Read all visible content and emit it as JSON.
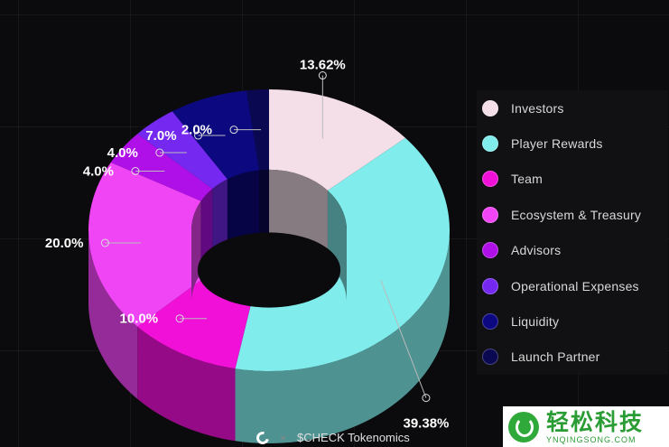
{
  "chart_data": {
    "type": "pie",
    "donut": true,
    "title": "$CHECK Tokenomics",
    "legend_position": "right",
    "slices": [
      {
        "name": "Investors",
        "value": 13.62,
        "label": "13.62%",
        "color": "#f4dfe8"
      },
      {
        "name": "Player Rewards",
        "value": 39.38,
        "label": "39.38%",
        "color": "#80ecec"
      },
      {
        "name": "Team",
        "value": 10.0,
        "label": "10.0%",
        "color": "#f010d8"
      },
      {
        "name": "Ecosystem & Treasury",
        "value": 20.0,
        "label": "20.0%",
        "color": "#f045f5"
      },
      {
        "name": "Advisors",
        "value": 4.0,
        "label": "4.0%",
        "color": "#b010e8"
      },
      {
        "name": "Operational Expenses",
        "value": 4.0,
        "label": "4.0%",
        "color": "#7428f0"
      },
      {
        "name": "Liquidity",
        "value": 7.0,
        "label": "7.0%",
        "color": "#0c0880"
      },
      {
        "name": "Launch Partner",
        "value": 2.0,
        "label": "2.0%",
        "color": "#0a0850"
      }
    ]
  },
  "footer": {
    "separator": "×",
    "title": "$CHECK Tokenomics",
    "logo_icon": "check-logo-icon"
  },
  "watermark": {
    "cn": "轻松科技",
    "en": "YNQINGSONG.COM"
  }
}
